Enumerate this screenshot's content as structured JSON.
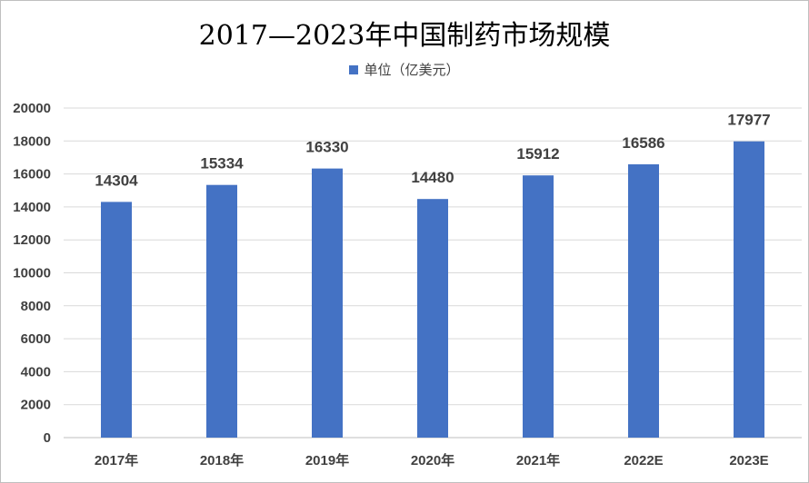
{
  "chart_data": {
    "type": "bar",
    "title": "2017—2023年中国制药市场规模",
    "categories": [
      "2017年",
      "2018年",
      "2019年",
      "2020年",
      "2021年",
      "2022E",
      "2023E"
    ],
    "series": [
      {
        "name": "单位（亿美元）",
        "values": [
          14304,
          15334,
          16330,
          14480,
          15912,
          16586,
          17977
        ]
      }
    ],
    "ylim": [
      0,
      20000
    ],
    "yticks": [
      0,
      2000,
      4000,
      6000,
      8000,
      10000,
      12000,
      14000,
      16000,
      18000,
      20000
    ],
    "grid": true,
    "legend_position": "top",
    "data_labels": true,
    "bar_color": "#4472C4",
    "grid_color": "#d9d9d9"
  }
}
